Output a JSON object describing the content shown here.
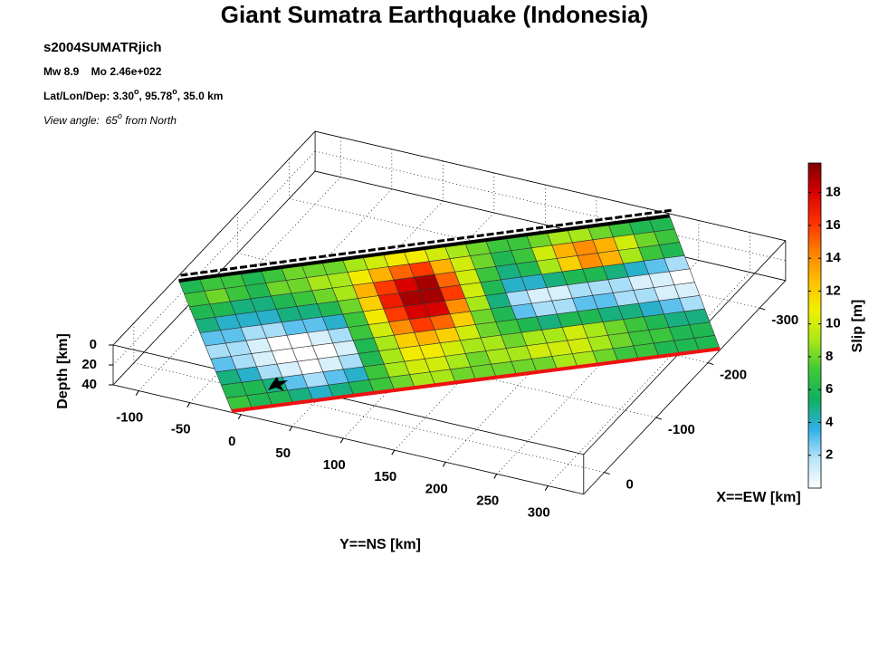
{
  "chart_data": {
    "type": "fault-surface",
    "title": "Giant Sumatra Earthquake (Indonesia)",
    "info": [
      [
        {
          "text": "s2004SUMATRjich"
        }
      ],
      [
        {
          "text": "Mw 8.9    Mo 2.46e+022"
        }
      ],
      [
        {
          "text": "Lat/Lon/Dep: 3.30"
        },
        {
          "text": "o",
          "sup": true
        },
        {
          "text": ", 95.78"
        },
        {
          "text": "o",
          "sup": true
        },
        {
          "text": ", 35.0 km"
        }
      ],
      [
        {
          "text": "View angle:  65"
        },
        {
          "text": "o",
          "sup": true
        },
        {
          "text": " from North"
        }
      ]
    ],
    "xlabel": "X==EW [km]",
    "ylabel": "Y==NS [km]",
    "zlabel": "Depth [km]",
    "colorbar_label": "Slip [m]",
    "xlim": [
      -350,
      40
    ],
    "xticks": [
      0,
      -100,
      -200,
      -300
    ],
    "ylim": [
      -125,
      335
    ],
    "yticks": [
      -100,
      -50,
      0,
      50,
      100,
      150,
      200,
      250,
      300
    ],
    "zlim": [
      0,
      40
    ],
    "zticks": [
      0,
      20,
      40
    ],
    "grid": true,
    "clim": [
      0,
      19.8
    ],
    "cticks": [
      2,
      4,
      6,
      8,
      10,
      12,
      14,
      16,
      18
    ],
    "colormap": [
      "#ffffff",
      "#b8e4fa",
      "#30b0e8",
      "#10b060",
      "#40c838",
      "#a8e818",
      "#f0f000",
      "#ffc000",
      "#ff8000",
      "#ff3000",
      "#d80000",
      "#800000"
    ],
    "fault": {
      "top_left": [
        -121,
        -79,
        0
      ],
      "top_right": [
        223,
        -347,
        0
      ],
      "bottom_left": [
        -10,
        38,
        40
      ],
      "bottom_right": [
        334,
        -225,
        40
      ]
    },
    "slip": [
      [
        6,
        7,
        7,
        6,
        7,
        8,
        8,
        8,
        9,
        10,
        11,
        11,
        10,
        9,
        8,
        7,
        7,
        8,
        9,
        9,
        8,
        7,
        6,
        6
      ],
      [
        7,
        8,
        7,
        6,
        8,
        8,
        9,
        9,
        11,
        13,
        15,
        16,
        13,
        10,
        8,
        6,
        7,
        10,
        13,
        14,
        13,
        10,
        8,
        7
      ],
      [
        6,
        6,
        5,
        5,
        6,
        7,
        8,
        9,
        13,
        16,
        18,
        19,
        15,
        10,
        7,
        5,
        6,
        9,
        12,
        14,
        13,
        9,
        7,
        6
      ],
      [
        5,
        4,
        4,
        4,
        5,
        5,
        6,
        8,
        12,
        17,
        19,
        19,
        16,
        10,
        6,
        4,
        4,
        5,
        6,
        6,
        5,
        4,
        3,
        2
      ],
      [
        3,
        3,
        2,
        2,
        3,
        3,
        4,
        7,
        11,
        16,
        18,
        18,
        14,
        9,
        5,
        2,
        1,
        1,
        2,
        2,
        2,
        1,
        1,
        0
      ],
      [
        2,
        2,
        1,
        0,
        0,
        1,
        2,
        7,
        10,
        14,
        16,
        15,
        12,
        8,
        6,
        3,
        2,
        2,
        3,
        3,
        2,
        2,
        1,
        1
      ],
      [
        3,
        2,
        1,
        0,
        0,
        0,
        1,
        6,
        9,
        12,
        13,
        12,
        10,
        8,
        7,
        6,
        5,
        6,
        6,
        5,
        5,
        4,
        3,
        2
      ],
      [
        5,
        4,
        2,
        1,
        0,
        1,
        2,
        6,
        9,
        11,
        11,
        10,
        9,
        9,
        8,
        9,
        9,
        10,
        9,
        8,
        7,
        6,
        5,
        5
      ],
      [
        6,
        6,
        5,
        3,
        2,
        3,
        4,
        7,
        9,
        10,
        10,
        9,
        8,
        9,
        9,
        10,
        10,
        10,
        9,
        8,
        7,
        7,
        6,
        6
      ],
      [
        7,
        6,
        6,
        5,
        4,
        5,
        6,
        7,
        8,
        9,
        9,
        8,
        8,
        8,
        8,
        8,
        9,
        9,
        8,
        7,
        7,
        6,
        6,
        6
      ]
    ]
  }
}
